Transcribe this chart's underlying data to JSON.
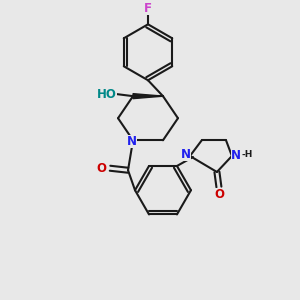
{
  "background_color": "#e8e8e8",
  "bond_color": "#1a1a1a",
  "N_color": "#2020ee",
  "O_color": "#cc0000",
  "F_color": "#cc44cc",
  "OH_color": "#008888",
  "lw": 1.5,
  "fs": 8.5,
  "figsize": [
    3.0,
    3.0
  ],
  "dpi": 100,
  "xlim": [
    0,
    300
  ],
  "ylim": [
    0,
    300
  ]
}
